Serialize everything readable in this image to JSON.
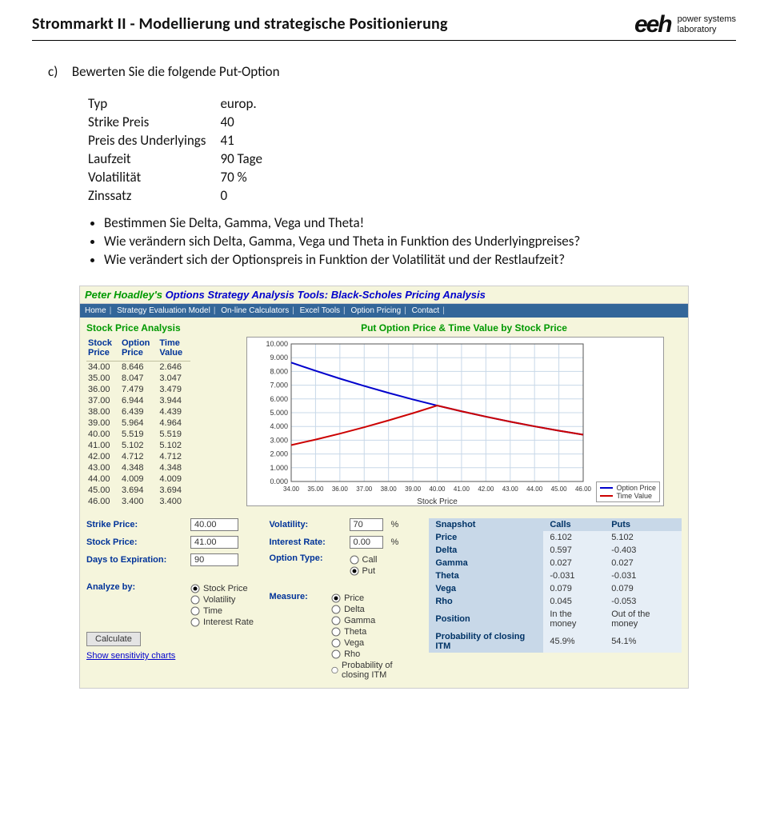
{
  "page": {
    "header": "Strommarkt II - Modellierung und strategische Positionierung",
    "logo_brand": "eeh",
    "logo_sub1": "power systems",
    "logo_sub2": "laboratory",
    "q_label": "c)",
    "q_text": "Bewerten Sie die folgende Put-Option",
    "params": {
      "r1l": "Typ",
      "r1v": "europ.",
      "r2l": "Strike Preis",
      "r2v": "40",
      "r3l": "Preis des Underlyings",
      "r3v": "41",
      "r4l": "Laufzeit",
      "r4v": "90 Tage",
      "r5l": "Volatilität",
      "r5v": "70 %",
      "r6l": "Zinssatz",
      "r6v": "0"
    },
    "b1": "Bestimmen Sie Delta, Gamma, Vega und Theta!",
    "b2": "Wie verändern sich Delta, Gamma, Vega und Theta in Funktion des Underlyingpreises?",
    "b3": "Wie verändert sich der Optionspreis in Funktion der Volatilität und der Restlaufzeit?"
  },
  "tool": {
    "title_g": "Peter Hoadley's",
    "title_b": " Options Strategy Analysis Tools:  Black-Scholes Pricing Analysis",
    "nav": [
      "Home",
      "Strategy Evaluation Model",
      "On-line Calculators",
      "Excel Tools",
      "Option Pricing",
      "Contact"
    ],
    "spa_title": "Stock Price Analysis",
    "chart_title": "Put Option Price & Time Value by Stock Price",
    "table_headers": {
      "c1": "Stock\nPrice",
      "c2": "Option\nPrice",
      "c3": "Time\nValue"
    },
    "rows": [
      {
        "s": "34.00",
        "o": "8.646",
        "t": "2.646"
      },
      {
        "s": "35.00",
        "o": "8.047",
        "t": "3.047"
      },
      {
        "s": "36.00",
        "o": "7.479",
        "t": "3.479"
      },
      {
        "s": "37.00",
        "o": "6.944",
        "t": "3.944"
      },
      {
        "s": "38.00",
        "o": "6.439",
        "t": "4.439"
      },
      {
        "s": "39.00",
        "o": "5.964",
        "t": "4.964"
      },
      {
        "s": "40.00",
        "o": "5.519",
        "t": "5.519"
      },
      {
        "s": "41.00",
        "o": "5.102",
        "t": "5.102"
      },
      {
        "s": "42.00",
        "o": "4.712",
        "t": "4.712"
      },
      {
        "s": "43.00",
        "o": "4.348",
        "t": "4.348"
      },
      {
        "s": "44.00",
        "o": "4.009",
        "t": "4.009"
      },
      {
        "s": "45.00",
        "o": "3.694",
        "t": "3.694"
      },
      {
        "s": "46.00",
        "o": "3.400",
        "t": "3.400"
      }
    ],
    "chart": {
      "xlabel": "Stock Price",
      "x_ticks": [
        "34.00",
        "35.00",
        "36.00",
        "37.00",
        "38.00",
        "39.00",
        "40.00",
        "41.00",
        "42.00",
        "43.00",
        "44.00",
        "45.00",
        "46.00"
      ],
      "y_ticks": [
        "0.000",
        "1.000",
        "2.000",
        "3.000",
        "4.000",
        "5.000",
        "6.000",
        "7.000",
        "8.000",
        "9.000",
        "10.000"
      ],
      "ylim": [
        0,
        10
      ],
      "option_price": [
        8.646,
        8.047,
        7.479,
        6.944,
        6.439,
        5.964,
        5.519,
        5.102,
        4.712,
        4.348,
        4.009,
        3.694,
        3.4
      ],
      "time_value": [
        2.646,
        3.047,
        3.479,
        3.944,
        4.439,
        4.964,
        5.519,
        5.102,
        4.712,
        4.348,
        4.009,
        3.694,
        3.4
      ],
      "colors": {
        "option": "#0000cc",
        "time": "#cc0000",
        "grid": "#c8d8e8",
        "axis": "#555555",
        "bg": "#ffffff",
        "text": "#333333"
      },
      "legend": {
        "a": "Option Price",
        "b": "Time Value"
      }
    },
    "form": {
      "strike_l": "Strike Price:",
      "strike_v": "40.00",
      "stock_l": "Stock Price:",
      "stock_v": "41.00",
      "days_l": "Days to Expiration:",
      "days_v": "90",
      "vol_l": "Volatility:",
      "vol_v": "70",
      "pct": "%",
      "rate_l": "Interest Rate:",
      "rate_v": "0.00",
      "type_l": "Option Type:",
      "call": "Call",
      "put": "Put",
      "analyze_l": "Analyze by:",
      "a1": "Stock Price",
      "a2": "Volatility",
      "a3": "Time",
      "a4": "Interest Rate",
      "measure_l": "Measure:",
      "m1": "Price",
      "m2": "Delta",
      "m3": "Gamma",
      "m4": "Theta",
      "m5": "Vega",
      "m6": "Rho",
      "m7": "Probability of closing ITM",
      "calc": "Calculate",
      "sens": "Show sensitivity charts"
    },
    "snapshot": {
      "h1": "Snapshot",
      "h2": "Calls",
      "h3": "Puts",
      "rows": [
        {
          "k": "Price",
          "c": "6.102",
          "p": "5.102"
        },
        {
          "k": "Delta",
          "c": "0.597",
          "p": "-0.403"
        },
        {
          "k": "Gamma",
          "c": "0.027",
          "p": "0.027"
        },
        {
          "k": "Theta",
          "c": "-0.031",
          "p": "-0.031"
        },
        {
          "k": "Vega",
          "c": "0.079",
          "p": "0.079"
        },
        {
          "k": "Rho",
          "c": "0.045",
          "p": "-0.053"
        },
        {
          "k": "Position",
          "c": "In the money",
          "p": "Out of the money"
        },
        {
          "k": "Probability of closing ITM",
          "c": "45.9%",
          "p": "54.1%"
        }
      ]
    }
  }
}
